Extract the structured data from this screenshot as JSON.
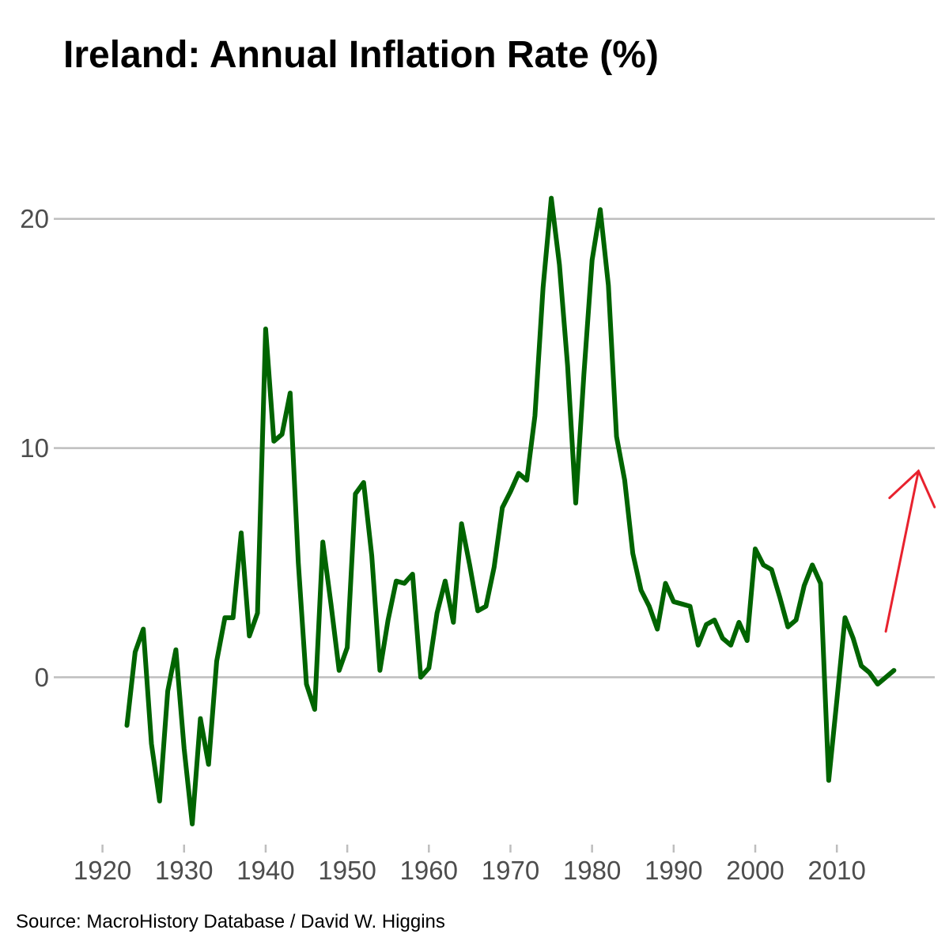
{
  "colors": {
    "line": "#006400",
    "arrow": "#e8222e",
    "grid": "#bebebe",
    "tick_text": "#4d4d4d"
  },
  "chart_data": {
    "type": "line",
    "title": "Ireland: Annual Inflation Rate (%)",
    "xlabel": "",
    "ylabel": "",
    "source": "Source: MacroHistory Database / David W. Higgins",
    "xlim": [
      1915,
      2022
    ],
    "ylim": [
      -7.3,
      24.2
    ],
    "x_ticks": [
      1920,
      1930,
      1940,
      1950,
      1960,
      1970,
      1980,
      1990,
      2000,
      2010
    ],
    "y_ticks": [
      0,
      10,
      20
    ],
    "grid": {
      "horizontal": true,
      "vertical": false
    },
    "series": [
      {
        "x": [
          1923,
          1924,
          1925,
          1926,
          1927,
          1928,
          1929,
          1930,
          1931,
          1932,
          1933,
          1934,
          1935,
          1936,
          1937,
          1938,
          1939,
          1940,
          1941,
          1942,
          1943,
          1944,
          1945,
          1946,
          1947,
          1948,
          1949,
          1950,
          1951,
          1952,
          1953,
          1954,
          1955,
          1956,
          1957,
          1958,
          1959,
          1960,
          1961,
          1962,
          1963,
          1964,
          1965,
          1966,
          1967,
          1968,
          1969,
          1970,
          1971,
          1972,
          1973,
          1974,
          1975,
          1976,
          1977,
          1978,
          1979,
          1980,
          1981,
          1982,
          1983,
          1984,
          1985,
          1986,
          1987,
          1988,
          1989,
          1990,
          1991,
          1992,
          1993,
          1994,
          1995,
          1996,
          1997,
          1998,
          1999,
          2000,
          2001,
          2002,
          2003,
          2004,
          2005,
          2006,
          2007,
          2008,
          2009,
          2010,
          2011,
          2012,
          2013,
          2014,
          2015,
          2016,
          2017
        ],
        "values": [
          -2.1,
          1.1,
          2.1,
          -2.9,
          -5.4,
          -0.6,
          1.2,
          -3.1,
          -6.4,
          -1.8,
          -3.8,
          0.7,
          2.6,
          2.6,
          6.3,
          1.8,
          2.8,
          15.2,
          10.3,
          10.6,
          12.4,
          5.0,
          -0.3,
          -1.4,
          5.9,
          3.2,
          0.3,
          1.3,
          8.0,
          8.5,
          5.3,
          0.3,
          2.5,
          4.2,
          4.1,
          4.5,
          0.0,
          0.4,
          2.8,
          4.2,
          2.4,
          6.7,
          4.9,
          2.9,
          3.1,
          4.8,
          7.4,
          8.1,
          8.9,
          8.6,
          11.4,
          17.0,
          20.9,
          18.0,
          13.6,
          7.6,
          13.2,
          18.2,
          20.4,
          17.1,
          10.5,
          8.6,
          5.4,
          3.8,
          3.1,
          2.1,
          4.1,
          3.3,
          3.2,
          3.1,
          1.4,
          2.3,
          2.5,
          1.7,
          1.4,
          2.4,
          1.6,
          5.6,
          4.9,
          4.7,
          3.5,
          2.2,
          2.5,
          4.0,
          4.9,
          4.1,
          -4.5,
          -1.0,
          2.6,
          1.7,
          0.5,
          0.2,
          -0.3,
          0.0,
          0.3
        ]
      }
    ],
    "annotation": {
      "type": "arrow",
      "meaning": "upward-trend",
      "from": [
        2016,
        2.0
      ],
      "to": [
        2020,
        9.0
      ]
    }
  }
}
